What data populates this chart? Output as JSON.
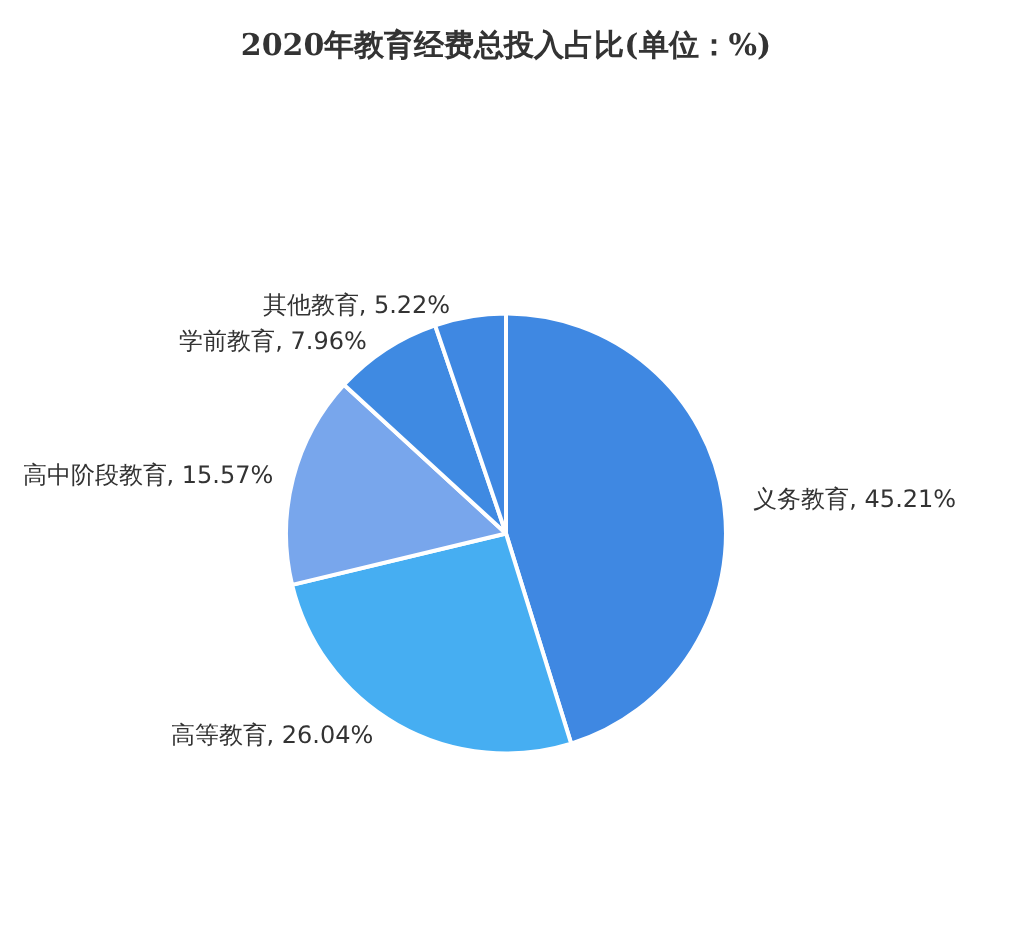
{
  "chart_data": {
    "type": "pie",
    "title": "2020年教育经费总投入占比(单位：%)",
    "categories": [
      "义务教育",
      "高等教育",
      "高中阶段教育",
      "学前教育",
      "其他教育"
    ],
    "values": [
      45.21,
      26.04,
      15.57,
      7.96,
      5.22
    ],
    "value_labels": [
      "45.21%",
      "26.04%",
      "15.57%",
      "7.96%",
      "5.22%"
    ],
    "colors": [
      "#3f88e2",
      "#46aef2",
      "#78a6ec",
      "#3f8ae2",
      "#3f88e2"
    ],
    "legend": false
  }
}
